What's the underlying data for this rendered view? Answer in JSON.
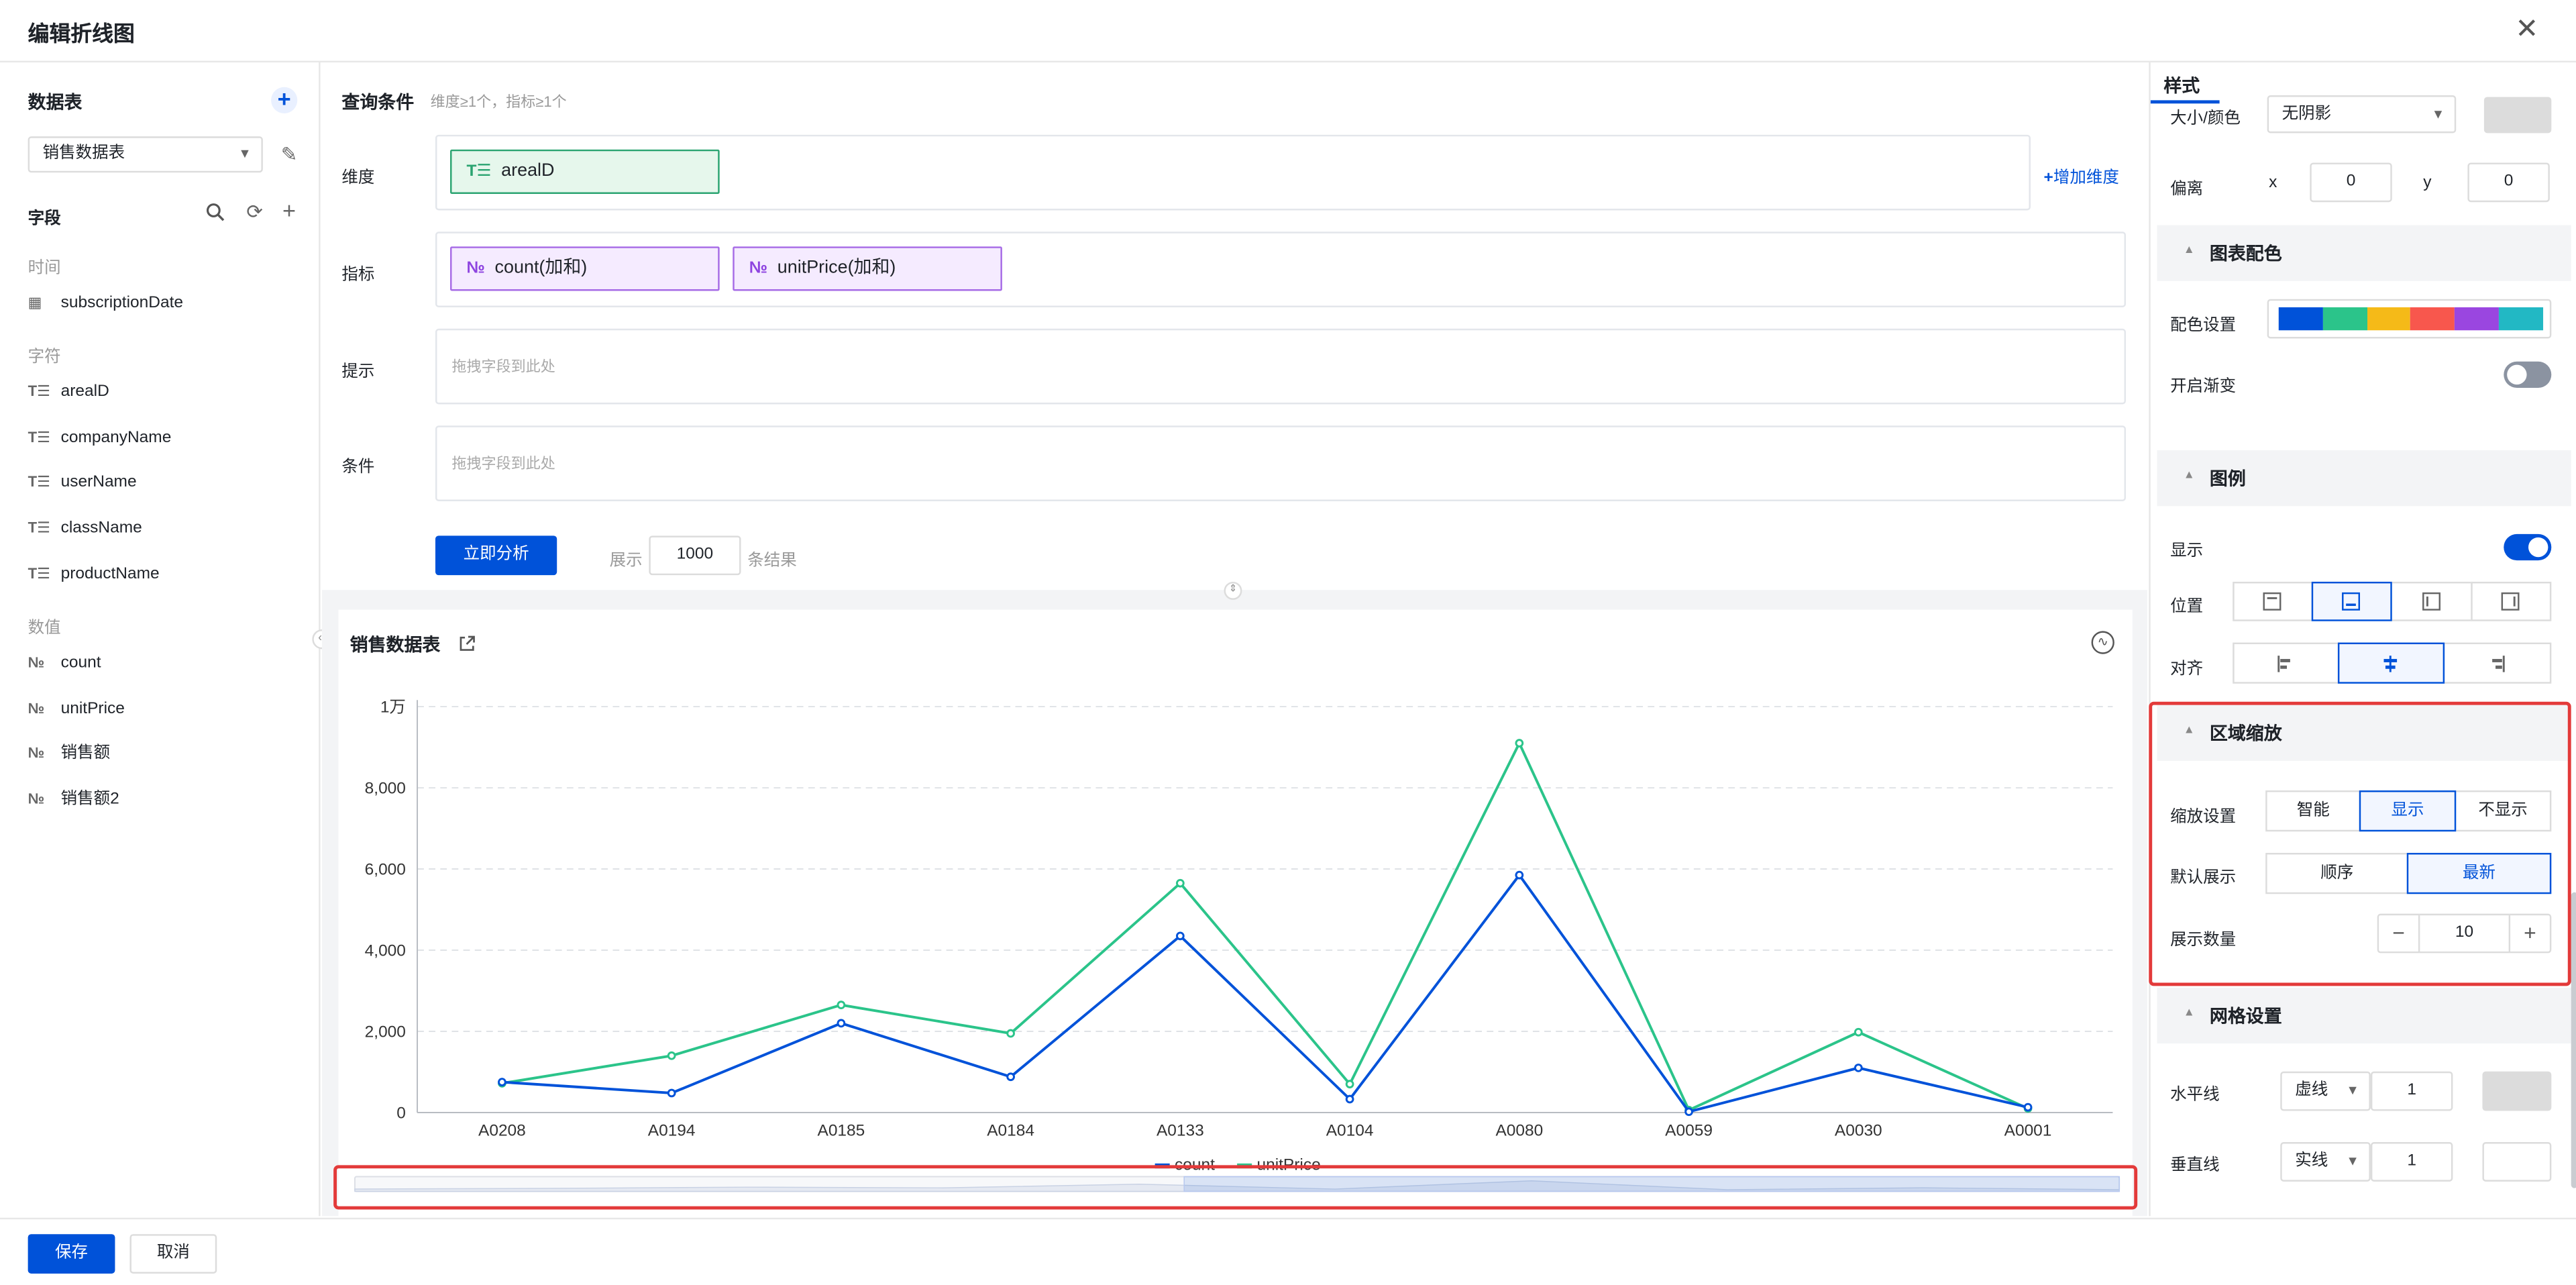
{
  "dialog": {
    "title": "编辑折线图"
  },
  "left": {
    "datatable_title": "数据表",
    "datatable_select": "销售数据表",
    "fields_title": "字段",
    "groups": [
      {
        "label": "时间",
        "items": [
          {
            "name": "subscriptionDate",
            "icon": "calendar-icon",
            "glyph": "▦"
          }
        ]
      },
      {
        "label": "字符",
        "items": [
          {
            "name": "arealD",
            "icon": "text-field-icon",
            "glyph": "T☰"
          },
          {
            "name": "companyName",
            "icon": "text-field-icon",
            "glyph": "T☰"
          },
          {
            "name": "userName",
            "icon": "text-field-icon",
            "glyph": "T☰"
          },
          {
            "name": "className",
            "icon": "text-field-icon",
            "glyph": "T☰"
          },
          {
            "name": "productName",
            "icon": "text-field-icon",
            "glyph": "T☰"
          }
        ]
      },
      {
        "label": "数值",
        "items": [
          {
            "name": "count",
            "icon": "number-field-icon",
            "glyph": "№"
          },
          {
            "name": "unitPrice",
            "icon": "number-field-icon",
            "glyph": "№"
          },
          {
            "name": "销售额",
            "icon": "number-field-icon",
            "glyph": "№"
          },
          {
            "name": "销售额2",
            "icon": "number-field-icon",
            "glyph": "№"
          }
        ]
      }
    ]
  },
  "query": {
    "title": "查询条件",
    "hint": "维度≥1个，指标≥1个",
    "dimension_label": "维度",
    "dimension_chip": "arealD",
    "chip_dim_glyph": "T☰",
    "chip_met_glyph": "№",
    "add_dimension": "增加维度",
    "metric_label": "指标",
    "metric_chips": [
      "count(加和)",
      "unitPrice(加和)"
    ],
    "tooltip_label": "提示",
    "condition_label": "条件",
    "drop_placeholder": "拖拽字段到此处",
    "analyze_button": "立即分析",
    "show_label": "展示",
    "show_value": "1000",
    "result_suffix": "条结果"
  },
  "chart": {
    "title": "销售数据表",
    "legend": [
      "count",
      "unitPrice"
    ],
    "colors": {
      "count": "#0052d9",
      "unitPrice": "#2bc48a"
    }
  },
  "chart_data": {
    "type": "line",
    "title": "销售数据表",
    "categories": [
      "A0208",
      "A0194",
      "A0185",
      "A0184",
      "A0133",
      "A0104",
      "A0080",
      "A0059",
      "A0030",
      "A0001"
    ],
    "series": [
      {
        "name": "count",
        "values": [
          750,
          480,
          2200,
          880,
          4350,
          330,
          5850,
          20,
          1100,
          130
        ]
      },
      {
        "name": "unitPrice",
        "values": [
          720,
          1400,
          2650,
          1950,
          5650,
          700,
          9100,
          60,
          1980,
          100
        ]
      }
    ],
    "ylim": [
      0,
      10000
    ],
    "y_ticks": [
      "0",
      "2,000",
      "4,000",
      "6,000",
      "8,000",
      "1万"
    ],
    "grid": "horizontal-dashed",
    "legend_position": "bottom-center",
    "datazoom": {
      "start": 0.47,
      "end": 1.0
    }
  },
  "style": {
    "tab": "样式",
    "size_color_label": "大小/颜色",
    "shadow_select": "无阴影",
    "offset_label": "偏离",
    "offset_x_label": "x",
    "offset_x": "0",
    "offset_y_label": "y",
    "offset_y": "0",
    "palette_section": "图表配色",
    "palette_label": "配色设置",
    "palette_colors": [
      "#0052d9",
      "#2bc48a",
      "#f5ba18",
      "#f8574d",
      "#9a46e0",
      "#22b8c4"
    ],
    "gradient_label": "开启渐变",
    "gradient_on": false,
    "legend_section": "图例",
    "legend_show_label": "显示",
    "legend_show_on": true,
    "position_label": "位置",
    "position_options": [
      "top",
      "bottom",
      "left",
      "right"
    ],
    "position_selected": 1,
    "align_label": "对齐",
    "align_options": [
      "left",
      "center",
      "right"
    ],
    "align_selected": 1,
    "zoom_section": "区域缩放",
    "zoom_setting_label": "缩放设置",
    "zoom_setting_options": [
      "智能",
      "显示",
      "不显示"
    ],
    "zoom_setting_selected": 1,
    "default_show_label": "默认展示",
    "default_show_options": [
      "顺序",
      "最新"
    ],
    "default_show_selected": 1,
    "show_count_label": "展示数量",
    "show_count_value": "10",
    "grid_section": "网格设置",
    "hline_label": "水平线",
    "hline_style": "虚线",
    "hline_width": "1",
    "vline_label": "垂直线",
    "vline_style": "实线",
    "vline_width": "1"
  },
  "footer": {
    "save": "保存",
    "cancel": "取消"
  }
}
